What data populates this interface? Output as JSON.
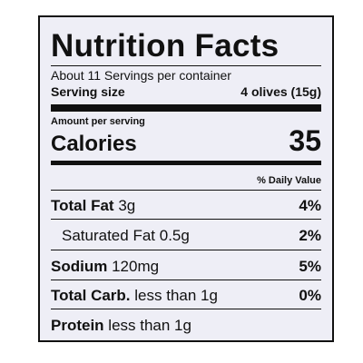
{
  "title": "Nutrition Facts",
  "servings": "About 11 Servings per container",
  "serving_size": {
    "label": "Serving size",
    "amount": "4 olives (15g)"
  },
  "amount_per_serving": "Amount per serving",
  "calories": {
    "label": "Calories",
    "value": "35"
  },
  "daily_value_header": "% Daily Value",
  "nutrients": [
    {
      "name": "Total Fat",
      "amount": "3g",
      "dv": "4%"
    },
    {
      "name": "Saturated Fat",
      "amount": "0.5g",
      "dv": "2%"
    },
    {
      "name": "Sodium",
      "amount": "120mg",
      "dv": "5%"
    },
    {
      "name": "Total Carb.",
      "amount": "less than 1g",
      "dv": "0%"
    },
    {
      "name": "Protein",
      "amount": "less than 1g"
    }
  ]
}
